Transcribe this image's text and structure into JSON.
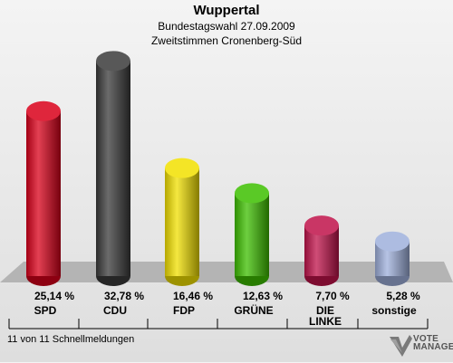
{
  "header": {
    "title": "Wuppertal",
    "subtitle": "Bundestagswahl 27.09.2009",
    "subtitle2": "Zweitstimmen Cronenberg-Süd"
  },
  "chart_data": {
    "type": "bar",
    "categories": [
      "SPD",
      "CDU",
      "FDP",
      "GRÜNE",
      "DIE LINKE",
      "sonstige"
    ],
    "values": [
      25.14,
      32.78,
      16.46,
      12.63,
      7.7,
      5.28
    ],
    "value_labels": [
      "25,14 %",
      "32,78 %",
      "16,46 %",
      "12,63 %",
      "7,70 %",
      "5,28 %"
    ],
    "colors": [
      "#d9001a",
      "#3a3a3a",
      "#f2e000",
      "#3dbf00",
      "#c0124a",
      "#9fb0dc"
    ],
    "title": "Wuppertal",
    "xlabel": "",
    "ylabel": "",
    "ylim": [
      0,
      35
    ],
    "grid": false,
    "legend": "none"
  },
  "footer": {
    "text": "11 von 11 Schnellmeldungen"
  },
  "logo": {
    "line1": "VOTE",
    "line2": "MANAGER"
  }
}
